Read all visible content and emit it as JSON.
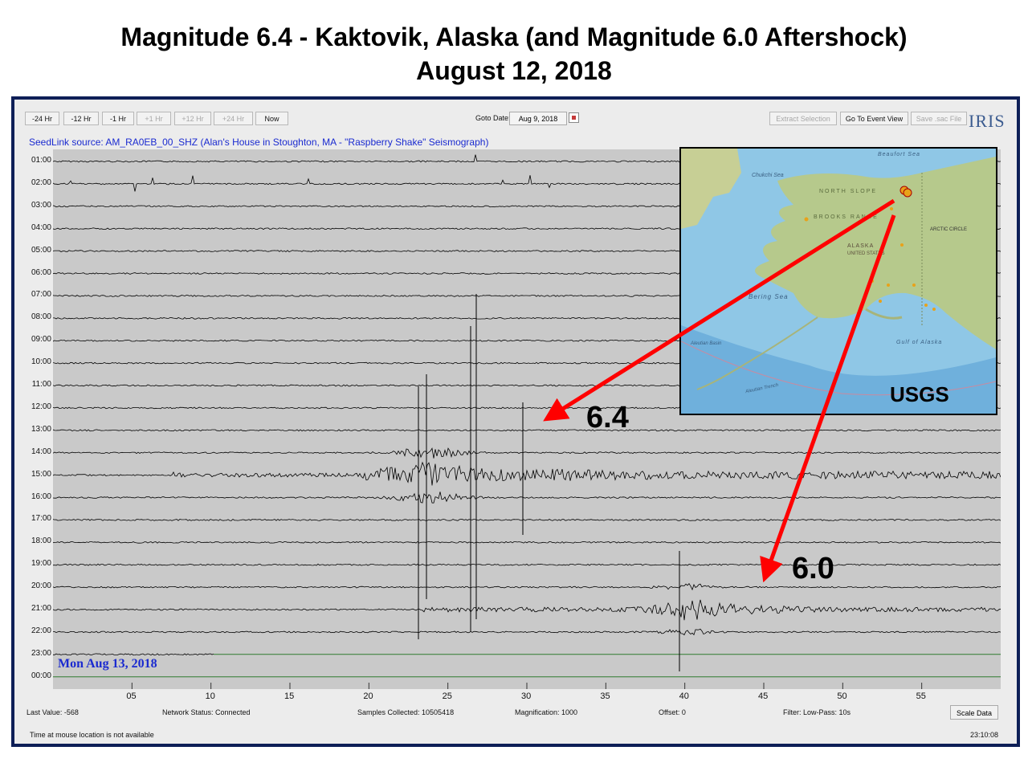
{
  "slide": {
    "title_line1": "Magnitude  6.4 - Kaktovik, Alaska (and Magnitude 6.0 Aftershock)",
    "title_line2": "August 12, 2018"
  },
  "toolbar": {
    "nav_buttons": [
      {
        "label": "-24 Hr",
        "enabled": true
      },
      {
        "label": "-12 Hr",
        "enabled": true
      },
      {
        "label": "-1 Hr",
        "enabled": true
      },
      {
        "label": "+1 Hr",
        "enabled": false
      },
      {
        "label": "+12 Hr",
        "enabled": false
      },
      {
        "label": "+24 Hr",
        "enabled": false
      },
      {
        "label": "Now",
        "enabled": true
      }
    ],
    "goto_label": "Goto Date:",
    "goto_value": "Aug 9, 2018",
    "extract_selection": "Extract Selection",
    "go_to_event_view": "Go To Event View",
    "save_sac_file": "Save .sac File",
    "logo_text": "IRIS"
  },
  "source_label": "SeedLink source: AM_RA0EB_00_SHZ (Alan's House in Stoughton, MA - \"Raspberry Shake\" Seismograph)",
  "helicorder": {
    "hour_labels": [
      "01:00",
      "02:00",
      "03:00",
      "04:00",
      "05:00",
      "06:00",
      "07:00",
      "08:00",
      "09:00",
      "10:00",
      "11:00",
      "12:00",
      "13:00",
      "14:00",
      "15:00",
      "16:00",
      "17:00",
      "18:00",
      "19:00",
      "20:00",
      "21:00",
      "22:00",
      "23:00",
      "00:00"
    ],
    "minute_ticks": [
      "05",
      "10",
      "15",
      "20",
      "25",
      "30",
      "35",
      "40",
      "45",
      "50",
      "55"
    ],
    "day_label": "Mon Aug 13, 2018",
    "trace_color": "#000000",
    "flat_trace_color": "#2f7a2f",
    "background_color": "#c9c9c9"
  },
  "status_bar": {
    "last_value": "Last Value:  -568",
    "network_status": "Network Status:  Connected",
    "samples_collected": "Samples Collected:  10505418",
    "magnification": "Magnification:  1000",
    "offset": "Offset:  0",
    "filter": "Filter:  Low-Pass: 10s",
    "scale_button": "Scale Data",
    "mouse_status": "Time at mouse location is not available",
    "clock": "23:10:08"
  },
  "annotations": {
    "mainshock_label": "6.4",
    "aftershock_label": "6.0",
    "arrow_color": "#ff0000"
  },
  "inset_map": {
    "credit": "USGS",
    "labels": [
      "Beaufort Sea",
      "Chukchi Sea",
      "NORTH SLOPE",
      "BROOKS RANGE",
      "ARCTIC CIRCLE",
      "ALASKA",
      "UNITED STATES",
      "Bering Sea",
      "Aleutian Basin",
      "Gulf of Alaska",
      "Aleutian Trench"
    ],
    "land_color": "#b6c98c",
    "water_color": "#8fc7e6",
    "marker_color": "#e8a21a"
  }
}
